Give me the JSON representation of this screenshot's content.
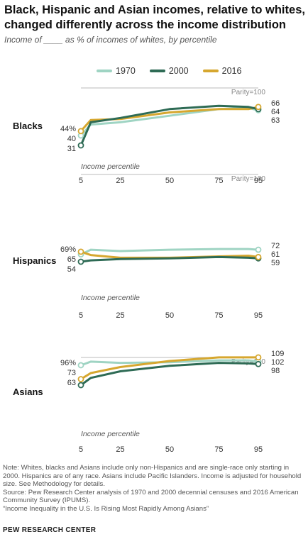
{
  "title": "Black, Hispanic and Asian incomes, relative to whites, changed differently across the income distribution",
  "subtitle": "Income of ____ as % of incomes of whites, by percentile",
  "legend": [
    {
      "label": "1970",
      "color": "#9fd4c3"
    },
    {
      "label": "2000",
      "color": "#2e6b55"
    },
    {
      "label": "2016",
      "color": "#d6a72f"
    }
  ],
  "chart_data": [
    {
      "type": "line",
      "group_label": "Blacks",
      "xlabel": "Income percentile",
      "x_ticks": [
        5,
        25,
        50,
        75,
        95
      ],
      "parity_label": "Parity=100",
      "x": [
        5,
        10,
        25,
        50,
        75,
        90,
        95
      ],
      "series": [
        {
          "name": "1970",
          "values": [
            40,
            50,
            52,
            58,
            64,
            65,
            63
          ]
        },
        {
          "name": "2000",
          "values": [
            31,
            52,
            56,
            64,
            67,
            66,
            64
          ]
        },
        {
          "name": "2016",
          "values": [
            44,
            54,
            55,
            61,
            64,
            64,
            66
          ]
        }
      ],
      "end_labels": [
        "66",
        "64",
        "63"
      ],
      "start_labels": [
        "44%",
        "40",
        "31"
      ]
    },
    {
      "type": "line",
      "group_label": "Hispanics",
      "xlabel": "Income percentile",
      "x_ticks": [
        5,
        25,
        50,
        75,
        95
      ],
      "parity_label": "Parity=100",
      "x": [
        5,
        10,
        25,
        50,
        75,
        90,
        95
      ],
      "series": [
        {
          "name": "1970",
          "values": [
            65,
            72,
            70,
            72,
            73,
            73,
            72
          ]
        },
        {
          "name": "2000",
          "values": [
            54,
            56,
            58,
            59,
            61,
            60,
            59
          ]
        },
        {
          "name": "2016",
          "values": [
            69,
            64,
            60,
            60,
            62,
            63,
            61
          ]
        }
      ],
      "end_labels": [
        "72",
        "61",
        "59"
      ],
      "start_labels": [
        "69%",
        "65",
        "54"
      ]
    },
    {
      "type": "line",
      "group_label": "Asians",
      "xlabel": "Income percentile",
      "x_ticks": [
        5,
        25,
        50,
        75,
        95
      ],
      "parity_label": "Parity=100",
      "x": [
        5,
        10,
        25,
        50,
        75,
        90,
        95
      ],
      "series": [
        {
          "name": "1970",
          "values": [
            96,
            102,
            100,
            101,
            104,
            104,
            102
          ]
        },
        {
          "name": "2000",
          "values": [
            63,
            75,
            86,
            95,
            100,
            99,
            98
          ]
        },
        {
          "name": "2016",
          "values": [
            73,
            83,
            93,
            103,
            109,
            109,
            109
          ]
        }
      ],
      "end_labels": [
        "109",
        "102",
        "98"
      ],
      "start_labels": [
        "96%",
        "73",
        "63"
      ]
    }
  ],
  "notes": [
    "Note:  Whites, blacks and Asians include only non-Hispanics and are single-race only starting in 2000. Hispanics are of any race. Asians include Pacific Islanders. Income is adjusted for household size. See Methodology for details.",
    "Source: Pew Research Center analysis of 1970 and 2000 decennial censuses and 2016 American Community Survey (IPUMS).",
    "“Income Inequality in the U.S. Is Rising Most Rapidly Among Asians”"
  ],
  "brand": "PEW RESEARCH CENTER"
}
